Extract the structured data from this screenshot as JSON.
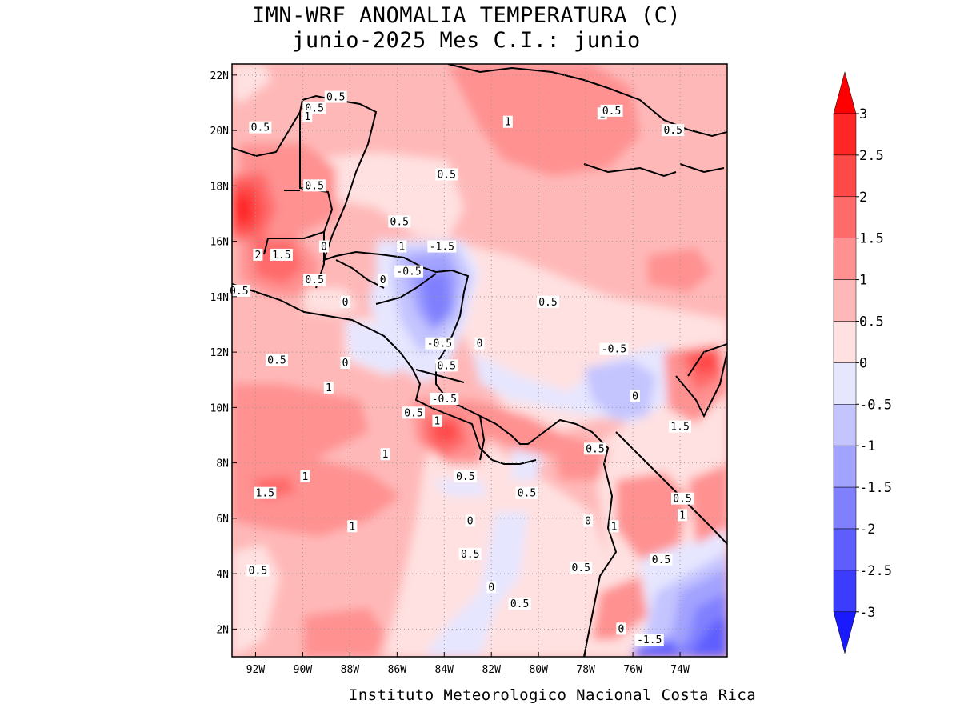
{
  "title_line1": "IMN-WRF  ANOMALIA TEMPERATURA (C)",
  "title_line2": "junio-2025 Mes C.I.: junio",
  "footer": "Instituto Meteorologico Nacional Costa Rica",
  "map": {
    "lon_range": [
      -93,
      -72
    ],
    "lat_range": [
      1,
      22.4
    ],
    "lon_ticks": [
      "92W",
      "90W",
      "88W",
      "86W",
      "84W",
      "82W",
      "80W",
      "78W",
      "76W",
      "74W"
    ],
    "lat_ticks": [
      "2N",
      "4N",
      "6N",
      "8N",
      "10N",
      "12N",
      "14N",
      "16N",
      "18N",
      "20N",
      "22N"
    ],
    "grid": "dotted"
  },
  "colorbar": {
    "labels": [
      "3",
      "2.5",
      "2",
      "1.5",
      "1",
      "0.5",
      "0",
      "-0.5",
      "-1",
      "-1.5",
      "-2",
      "-2.5",
      "-3"
    ],
    "colors": [
      "#ff2626",
      "#ff4848",
      "#ff6a6a",
      "#ff9191",
      "#ffb8b8",
      "#ffe1e1",
      "#e6e6ff",
      "#c4c4ff",
      "#a2a2ff",
      "#8080ff",
      "#5e5eff",
      "#3c3cff"
    ],
    "top_arrow": "#ff0000",
    "bottom_arrow": "#1a1aff"
  },
  "contour_labels": [
    {
      "t": "0.5",
      "lon": -88.6,
      "lat": 21.2
    },
    {
      "t": "0.5",
      "lon": -89.5,
      "lat": 20.8
    },
    {
      "t": "1",
      "lon": -89.8,
      "lat": 20.5
    },
    {
      "t": "0.5",
      "lon": -91.8,
      "lat": 20.1
    },
    {
      "t": "1",
      "lon": -81.3,
      "lat": 20.3
    },
    {
      "t": "1",
      "lon": -77.3,
      "lat": 20.6
    },
    {
      "t": "0.5",
      "lon": -76.9,
      "lat": 20.7
    },
    {
      "t": "0.5",
      "lon": -74.3,
      "lat": 20.0
    },
    {
      "t": "0.5",
      "lon": -83.9,
      "lat": 18.4
    },
    {
      "t": "0.5",
      "lon": -89.5,
      "lat": 18.0
    },
    {
      "t": "0.5",
      "lon": -85.9,
      "lat": 16.7
    },
    {
      "t": "0",
      "lon": -89.1,
      "lat": 15.8
    },
    {
      "t": "1",
      "lon": -85.8,
      "lat": 15.8
    },
    {
      "t": "-1.5",
      "lon": -84.1,
      "lat": 15.8
    },
    {
      "t": "2",
      "lon": -91.9,
      "lat": 15.5
    },
    {
      "t": "1.5",
      "lon": -90.9,
      "lat": 15.5
    },
    {
      "t": "-0.5",
      "lon": -85.5,
      "lat": 14.9
    },
    {
      "t": "0.5",
      "lon": -89.5,
      "lat": 14.6
    },
    {
      "t": "0",
      "lon": -86.6,
      "lat": 14.6
    },
    {
      "t": "0.5",
      "lon": -92.7,
      "lat": 14.2
    },
    {
      "t": "0",
      "lon": -88.2,
      "lat": 13.8
    },
    {
      "t": "0.5",
      "lon": -79.6,
      "lat": 13.8
    },
    {
      "t": "-0.5",
      "lon": -84.2,
      "lat": 12.3
    },
    {
      "t": "0",
      "lon": -82.5,
      "lat": 12.3
    },
    {
      "t": "-0.5",
      "lon": -76.8,
      "lat": 12.1
    },
    {
      "t": "0.5",
      "lon": -91.1,
      "lat": 11.7
    },
    {
      "t": "0",
      "lon": -88.2,
      "lat": 11.6
    },
    {
      "t": "0.5",
      "lon": -83.9,
      "lat": 11.5
    },
    {
      "t": "1",
      "lon": -88.9,
      "lat": 10.7
    },
    {
      "t": "-0.5",
      "lon": -84.0,
      "lat": 10.3
    },
    {
      "t": "0",
      "lon": -75.9,
      "lat": 10.4
    },
    {
      "t": "0.5",
      "lon": -85.3,
      "lat": 9.8
    },
    {
      "t": "1",
      "lon": -84.3,
      "lat": 9.5
    },
    {
      "t": "1.5",
      "lon": -74.0,
      "lat": 9.3
    },
    {
      "t": "0.5",
      "lon": -77.6,
      "lat": 8.5
    },
    {
      "t": "1",
      "lon": -86.5,
      "lat": 8.3
    },
    {
      "t": "1",
      "lon": -89.9,
      "lat": 7.5
    },
    {
      "t": "0.5",
      "lon": -83.1,
      "lat": 7.5
    },
    {
      "t": "0.5",
      "lon": -80.5,
      "lat": 6.9
    },
    {
      "t": "1.5",
      "lon": -91.6,
      "lat": 6.9
    },
    {
      "t": "0.5",
      "lon": -73.9,
      "lat": 6.7
    },
    {
      "t": "1",
      "lon": -73.9,
      "lat": 6.1
    },
    {
      "t": "0",
      "lon": -82.9,
      "lat": 5.9
    },
    {
      "t": "0",
      "lon": -77.9,
      "lat": 5.9
    },
    {
      "t": "1",
      "lon": -76.8,
      "lat": 5.7
    },
    {
      "t": "1",
      "lon": -87.9,
      "lat": 5.7
    },
    {
      "t": "0.5",
      "lon": -82.9,
      "lat": 4.7
    },
    {
      "t": "0.5",
      "lon": -74.8,
      "lat": 4.5
    },
    {
      "t": "0.5",
      "lon": -91.9,
      "lat": 4.1
    },
    {
      "t": "0.5",
      "lon": -78.2,
      "lat": 4.2
    },
    {
      "t": "0",
      "lon": -82.0,
      "lat": 3.5
    },
    {
      "t": "0.5",
      "lon": -80.8,
      "lat": 2.9
    },
    {
      "t": "0",
      "lon": -76.5,
      "lat": 2.0
    },
    {
      "t": "-1.5",
      "lon": -75.3,
      "lat": 1.6
    }
  ]
}
